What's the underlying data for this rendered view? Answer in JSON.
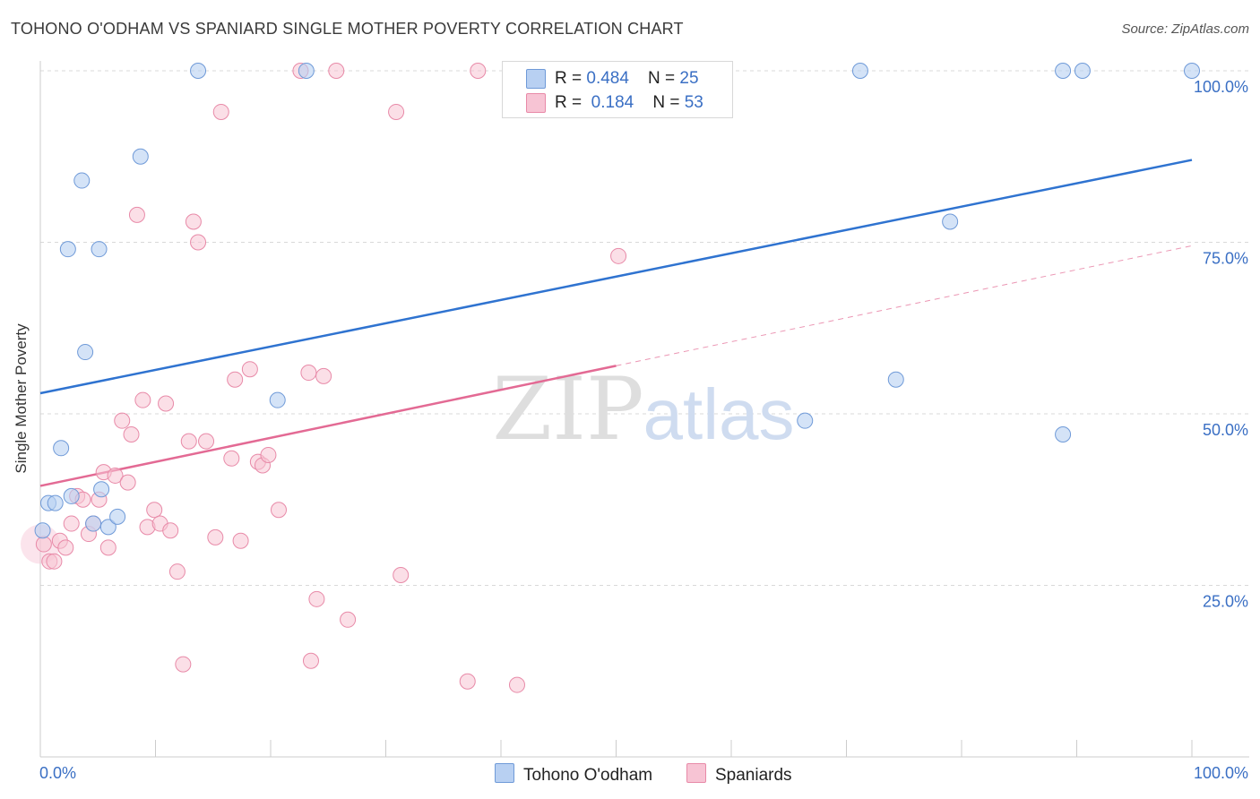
{
  "title": "TOHONO O'ODHAM VS SPANIARD SINGLE MOTHER POVERTY CORRELATION CHART",
  "source": "Source: ZipAtlas.com",
  "watermark": {
    "zip": "ZIP",
    "atlas": "atlas"
  },
  "colors": {
    "blue_fill": "#b8d0f2",
    "blue_stroke": "#6f9ad8",
    "blue_line": "#2f73d0",
    "pink_fill": "#f7c4d4",
    "pink_stroke": "#e88aa8",
    "pink_line": "#e36a94",
    "axis_text": "#3a6fc4",
    "grid": "#d9d9d9"
  },
  "legend": {
    "rows": [
      {
        "r_label": "R = ",
        "r_value": "0.484",
        "n_label": "N = ",
        "n_value": "25",
        "color": "#b8d0f2",
        "border": "#6f9ad8"
      },
      {
        "r_label": "R = ",
        "r_value": "0.184",
        "n_label": "N = ",
        "n_value": "53",
        "color": "#f7c4d4",
        "border": "#e88aa8"
      }
    ]
  },
  "bottom_legend": [
    {
      "label": "Tohono O'odham",
      "color": "#b8d0f2",
      "border": "#6f9ad8"
    },
    {
      "label": "Spaniards",
      "color": "#f7c4d4",
      "border": "#e88aa8"
    }
  ],
  "chart_data": {
    "type": "scatter",
    "title": "TOHONO O'ODHAM VS SPANIARD SINGLE MOTHER POVERTY CORRELATION CHART",
    "xlabel": "",
    "ylabel": "Single Mother Poverty",
    "xlim": [
      0,
      1
    ],
    "ylim": [
      0,
      1
    ],
    "x_tick_labels": [
      {
        "value": 0,
        "label": "0.0%"
      },
      {
        "value": 1,
        "label": "100.0%"
      }
    ],
    "y_tick_labels": [
      {
        "value": 0.25,
        "label": "25.0%"
      },
      {
        "value": 0.5,
        "label": "50.0%"
      },
      {
        "value": 0.75,
        "label": "75.0%"
      },
      {
        "value": 1.0,
        "label": "100.0%"
      }
    ],
    "series": [
      {
        "name": "Tohono O'odham",
        "r": 0.484,
        "n": 25,
        "trend": {
          "x0": 0.0,
          "y0": 0.53,
          "x1": 1.0,
          "y1": 0.87
        },
        "points": [
          [
            0.002,
            0.33
          ],
          [
            0.007,
            0.37
          ],
          [
            0.013,
            0.37
          ],
          [
            0.018,
            0.45
          ],
          [
            0.024,
            0.74
          ],
          [
            0.027,
            0.38
          ],
          [
            0.036,
            0.84
          ],
          [
            0.039,
            0.59
          ],
          [
            0.046,
            0.34
          ],
          [
            0.051,
            0.74
          ],
          [
            0.053,
            0.39
          ],
          [
            0.059,
            0.335
          ],
          [
            0.067,
            0.35
          ],
          [
            0.087,
            0.875
          ],
          [
            0.137,
            1.0
          ],
          [
            0.206,
            0.52
          ],
          [
            0.231,
            1.0
          ],
          [
            0.664,
            0.49
          ],
          [
            0.712,
            1.0
          ],
          [
            0.743,
            0.55
          ],
          [
            0.79,
            0.78
          ],
          [
            0.888,
            1.0
          ],
          [
            0.888,
            0.47
          ],
          [
            0.905,
            1.0
          ],
          [
            1.0,
            1.0
          ]
        ]
      },
      {
        "name": "Spaniards",
        "r": 0.184,
        "n": 53,
        "trend": {
          "x0": 0.0,
          "y0": 0.395,
          "x1": 0.5,
          "y1": 0.57
        },
        "trend_dashed": {
          "x0": 0.5,
          "y0": 0.57,
          "x1": 1.0,
          "y1": 0.745
        },
        "points": [
          [
            0.003,
            0.31
          ],
          [
            0.008,
            0.285
          ],
          [
            0.012,
            0.285
          ],
          [
            0.017,
            0.315
          ],
          [
            0.022,
            0.305
          ],
          [
            0.027,
            0.34
          ],
          [
            0.032,
            0.38
          ],
          [
            0.037,
            0.375
          ],
          [
            0.042,
            0.325
          ],
          [
            0.046,
            0.34
          ],
          [
            0.051,
            0.375
          ],
          [
            0.055,
            0.415
          ],
          [
            0.059,
            0.305
          ],
          [
            0.065,
            0.41
          ],
          [
            0.071,
            0.49
          ],
          [
            0.076,
            0.4
          ],
          [
            0.079,
            0.47
          ],
          [
            0.084,
            0.79
          ],
          [
            0.089,
            0.52
          ],
          [
            0.093,
            0.335
          ],
          [
            0.099,
            0.36
          ],
          [
            0.104,
            0.34
          ],
          [
            0.109,
            0.515
          ],
          [
            0.113,
            0.33
          ],
          [
            0.119,
            0.27
          ],
          [
            0.124,
            0.135
          ],
          [
            0.129,
            0.46
          ],
          [
            0.133,
            0.78
          ],
          [
            0.137,
            0.75
          ],
          [
            0.144,
            0.46
          ],
          [
            0.152,
            0.32
          ],
          [
            0.157,
            0.94
          ],
          [
            0.166,
            0.435
          ],
          [
            0.169,
            0.55
          ],
          [
            0.174,
            0.315
          ],
          [
            0.182,
            0.565
          ],
          [
            0.189,
            0.43
          ],
          [
            0.193,
            0.425
          ],
          [
            0.198,
            0.44
          ],
          [
            0.207,
            0.36
          ],
          [
            0.226,
            1.0
          ],
          [
            0.233,
            0.56
          ],
          [
            0.235,
            0.14
          ],
          [
            0.24,
            0.23
          ],
          [
            0.246,
            0.555
          ],
          [
            0.257,
            1.0
          ],
          [
            0.267,
            0.2
          ],
          [
            0.309,
            0.94
          ],
          [
            0.313,
            0.265
          ],
          [
            0.371,
            0.11
          ],
          [
            0.38,
            1.0
          ],
          [
            0.414,
            0.105
          ],
          [
            0.502,
            0.73
          ]
        ]
      }
    ]
  }
}
